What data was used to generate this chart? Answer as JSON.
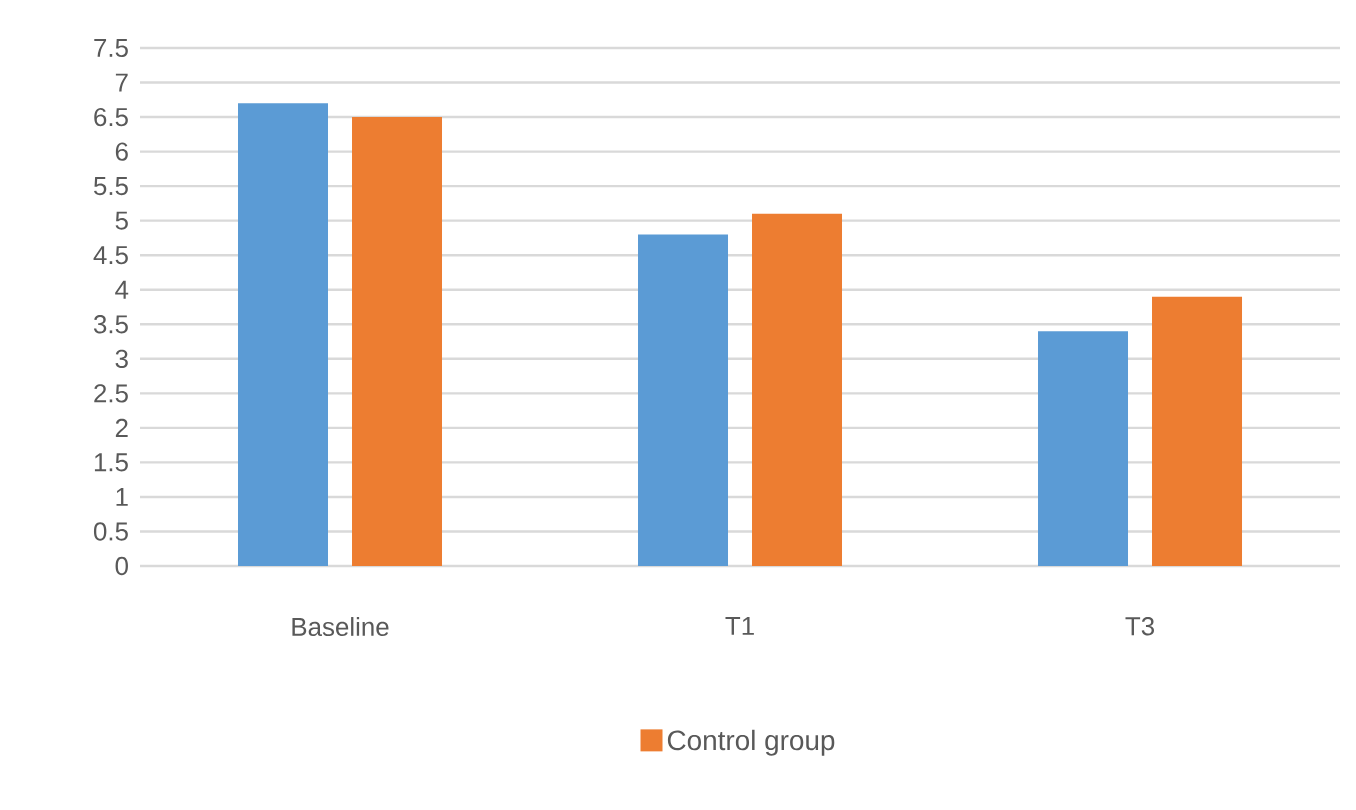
{
  "chart_data": {
    "type": "bar",
    "categories": [
      "Baseline",
      "T1",
      "T3"
    ],
    "series": [
      {
        "color": "#5b9bd5",
        "values": [
          6.7,
          4.8,
          3.4
        ]
      },
      {
        "name": "Control group",
        "color": "#ed7d31",
        "values": [
          6.5,
          5.1,
          3.9
        ]
      }
    ],
    "ylim": [
      0,
      7.5
    ],
    "yticks": [
      0,
      0.5,
      1,
      1.5,
      2,
      2.5,
      3,
      3.5,
      4,
      4.5,
      5,
      5.5,
      6,
      6.5,
      7,
      7.5
    ],
    "grid": "y",
    "legend": "bottom"
  }
}
